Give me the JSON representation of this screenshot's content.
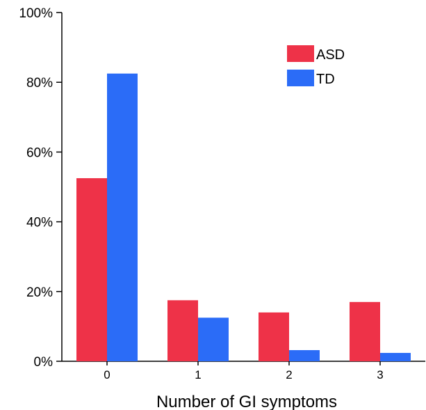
{
  "colors": {
    "ASD": "#ee3248",
    "TD": "#2b6cf7"
  },
  "chart_data": {
    "type": "bar",
    "title": "",
    "xlabel": "Number of GI symptoms",
    "ylabel": "",
    "categories": [
      "0",
      "1",
      "2",
      "3"
    ],
    "series": [
      {
        "name": "ASD",
        "values": [
          52.5,
          17.5,
          14.0,
          17.0
        ]
      },
      {
        "name": "TD",
        "values": [
          82.5,
          12.5,
          3.2,
          2.4
        ]
      }
    ],
    "ylim": [
      0,
      100
    ],
    "yticks": [
      "0%",
      "20%",
      "40%",
      "60%",
      "80%",
      "100%"
    ],
    "ytick_values": [
      0,
      20,
      40,
      60,
      80,
      100
    ],
    "legend_position": "top-right",
    "grid": false
  }
}
